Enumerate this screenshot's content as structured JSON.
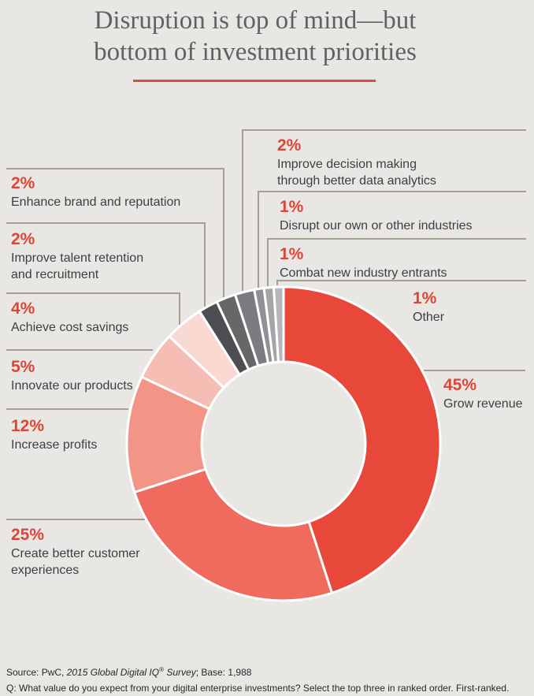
{
  "title": {
    "line1": "Disruption is top of mind—but",
    "line2": "bottom of investment priorities"
  },
  "colors": {
    "background": "#e9e7e4",
    "accent_rule_red": "#d5503c",
    "percent_text_red": "#dd4537",
    "label_text": "#3b3f45",
    "title_text": "#5e6166",
    "leader_line": "#a69d94",
    "footer_text": "#26282a",
    "slice_divider": "#ffffff"
  },
  "chart_data": {
    "type": "pie",
    "subtype": "donut",
    "title": "Disruption is top of mind—but bottom of investment priorities",
    "units": "%",
    "total": 100,
    "start_angle": "12 o'clock",
    "direction": "clockwise",
    "hole_ratio": 0.52,
    "legend_position": "callout labels with leader lines",
    "slices": [
      {
        "label": "Grow revenue",
        "value": 45,
        "pct_label": "45%",
        "color": "#e8483a"
      },
      {
        "label": "Create better customer experiences",
        "value": 25,
        "pct_label": "25%",
        "color": "#ee6b5e"
      },
      {
        "label": "Increase profits",
        "value": 12,
        "pct_label": "12%",
        "color": "#f29486"
      },
      {
        "label": "Innovate our products",
        "value": 5,
        "pct_label": "5%",
        "color": "#f6bdb4"
      },
      {
        "label": "Achieve cost savings",
        "value": 4,
        "pct_label": "4%",
        "color": "#fbd9d3"
      },
      {
        "label": "Improve talent retention and recruitment",
        "value": 2,
        "pct_label": "2%",
        "color": "#4d4e51"
      },
      {
        "label": "Enhance brand and reputation",
        "value": 2,
        "pct_label": "2%",
        "color": "#656769"
      },
      {
        "label": "Improve decision making through better data analytics",
        "value": 2,
        "pct_label": "2%",
        "color": "#7a7c7f"
      },
      {
        "label": "Disrupt our own or other industries",
        "value": 1,
        "pct_label": "1%",
        "color": "#8f9194"
      },
      {
        "label": "Combat new industry entrants",
        "value": 1,
        "pct_label": "1%",
        "color": "#a3a5a8"
      },
      {
        "label": "Other",
        "value": 1,
        "pct_label": "1%",
        "color": "#b4b6b8"
      }
    ]
  },
  "footer": {
    "source_prefix": "Source: PwC, ",
    "source_italic_1": "2015 Global Digital IQ",
    "reg_mark": "®",
    "source_italic_2": " Survey",
    "source_suffix": "; Base: 1,988",
    "question": "Q: What value do you expect from your digital enterprise investments? Select the top three in ranked order. First-ranked."
  }
}
